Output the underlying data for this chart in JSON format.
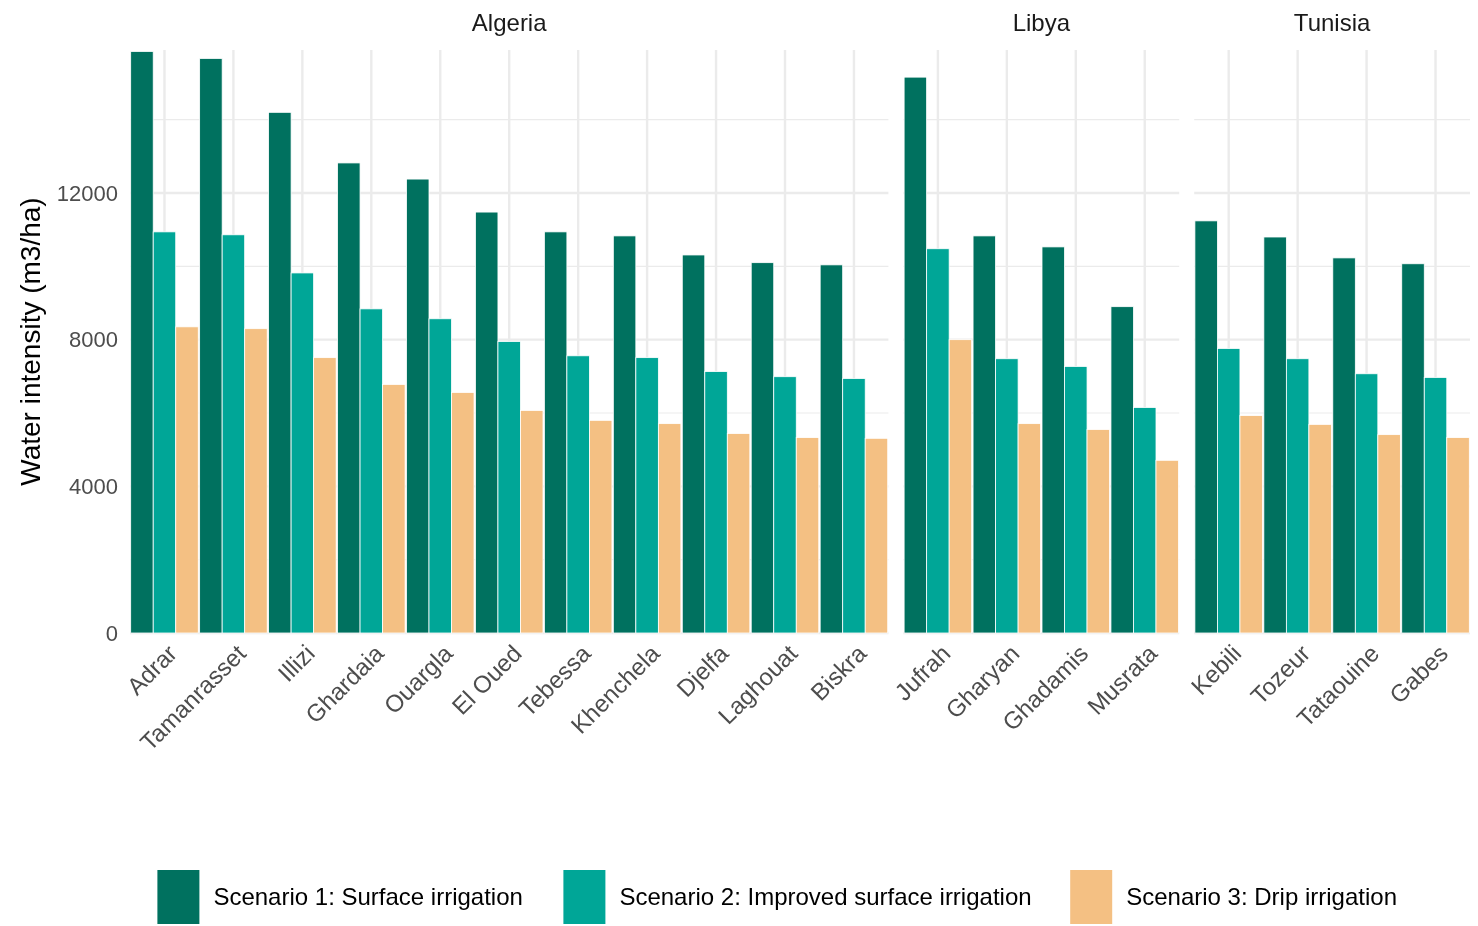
{
  "chart_data": [
    {
      "type": "bar",
      "title": "Algeria",
      "ylabel": "Water intensity (m3/ha)",
      "categories": [
        "Adrar",
        "Tamanrasset",
        "Illizi",
        "Ghardaia",
        "Ouargla",
        "El Oued",
        "Tebessa",
        "Khenchela",
        "Djelfa",
        "Laghouat",
        "Biskra"
      ],
      "series": [
        {
          "name": "Scenario 1: Surface irrigation",
          "color": "#00715f",
          "values": [
            15860,
            15670,
            14200,
            12820,
            12380,
            11480,
            10940,
            10830,
            10310,
            10100,
            10040
          ]
        },
        {
          "name": "Scenario 2: Improved surface irrigation",
          "color": "#00a697",
          "values": [
            10940,
            10860,
            9820,
            8840,
            8570,
            7950,
            7560,
            7510,
            7130,
            6990,
            6940
          ]
        },
        {
          "name": "Scenario 3: Drip irrigation",
          "color": "#f4c083",
          "values": [
            8350,
            8300,
            7510,
            6780,
            6560,
            6070,
            5800,
            5710,
            5440,
            5330,
            5310
          ]
        }
      ],
      "ylim": [
        0,
        15900
      ],
      "yticks": [
        0,
        {
          "value": 2000,
          "label": null
        },
        4000,
        {
          "value": 6000,
          "label": null
        },
        8000,
        {
          "value": 10000,
          "label": null
        },
        12000,
        {
          "value": 14000,
          "label": null
        }
      ],
      "grid": true,
      "legend": "bottom"
    },
    {
      "type": "bar",
      "title": "Libya",
      "categories": [
        "Jufrah",
        "Gharyan",
        "Ghadamis",
        "Musrata"
      ],
      "series": [
        {
          "color": "#00715f",
          "values": [
            15160,
            10830,
            10530,
            8900
          ]
        },
        {
          "color": "#00a697",
          "values": [
            10480,
            7480,
            7270,
            6150
          ]
        },
        {
          "color": "#f4c083",
          "values": [
            8000,
            5710,
            5550,
            4710
          ]
        }
      ],
      "ylim": [
        0,
        15900
      ],
      "yticks": [
        0,
        {
          "value": 2000,
          "label": null
        },
        4000,
        {
          "value": 6000,
          "label": null
        },
        8000,
        {
          "value": 10000,
          "label": null
        },
        12000,
        {
          "value": 14000,
          "label": null
        }
      ],
      "grid": true,
      "tick_labels": "x"
    },
    {
      "type": "bar",
      "title": "Tunisia",
      "categories": [
        "Kebili",
        "Tozeur",
        "Tataouine",
        "Gabes"
      ],
      "series": [
        {
          "color": "#00715f",
          "values": [
            11240,
            10800,
            10230,
            10070
          ]
        },
        {
          "color": "#00a697",
          "values": [
            7760,
            7480,
            7070,
            6970
          ]
        },
        {
          "color": "#f4c083",
          "values": [
            5930,
            5690,
            5410,
            5330
          ]
        }
      ],
      "ylim": [
        0,
        15900
      ],
      "yticks": [
        0,
        {
          "value": 2000,
          "label": null
        },
        4000,
        {
          "value": 6000,
          "label": null
        },
        8000,
        {
          "value": 10000,
          "label": null
        },
        12000,
        {
          "value": 14000,
          "label": null
        }
      ],
      "grid": true,
      "tick_labels": "x"
    }
  ]
}
